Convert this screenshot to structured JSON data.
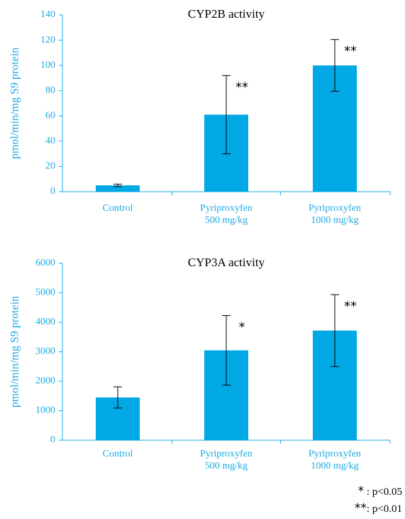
{
  "colors": {
    "bar": "#00a8e6",
    "text_accent": "#19a9e3",
    "axis": "#19a9e3",
    "errorbar": "#000000"
  },
  "chart_data": [
    {
      "type": "bar",
      "title": "CYP2B activity",
      "ylabel": "pmol/min/mg S9 protein",
      "categories": [
        "Control",
        "Pyriproxyfen|500 mg/kg",
        "Pyriproxyfen|1000 mg/kg"
      ],
      "category_lines": [
        [
          "Control"
        ],
        [
          "Pyriproxyfen",
          "500 mg/kg"
        ],
        [
          "Pyriproxyfen",
          "1000 mg/kg"
        ]
      ],
      "values": [
        5,
        61,
        100
      ],
      "error": [
        1,
        31,
        20.5
      ],
      "significance": [
        "",
        "**",
        "**"
      ],
      "ylim": [
        0,
        140
      ],
      "yticks": [
        "0",
        "20",
        "40",
        "60",
        "80",
        "100",
        "120",
        "140"
      ]
    },
    {
      "type": "bar",
      "title": "CYP3A activity",
      "ylabel": "pmol/min/mg S9 protein",
      "categories": [
        "Control",
        "Pyriproxyfen|500 mg/kg",
        "Pyriproxyfen|1000 mg/kg"
      ],
      "category_lines": [
        [
          "Control"
        ],
        [
          "Pyriproxyfen",
          "500 mg/kg"
        ],
        [
          "Pyriproxyfen",
          "1000 mg/kg"
        ]
      ],
      "values": [
        1450,
        3050,
        3720
      ],
      "error": [
        360,
        1180,
        1220
      ],
      "significance": [
        "",
        "*",
        "**"
      ],
      "ylim": [
        0,
        6000
      ],
      "yticks": [
        "0",
        "1000",
        "2000",
        "3000",
        "4000",
        "5000",
        "6000"
      ]
    }
  ],
  "legend": {
    "single_symbol": "*",
    "single_text": " : p<0.05",
    "double_symbol": "**",
    "double_text": ": p<0.01"
  }
}
